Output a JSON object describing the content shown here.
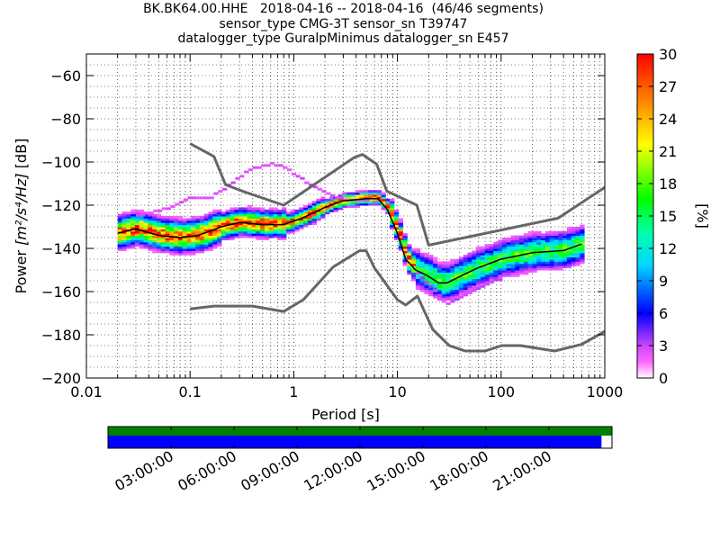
{
  "title_lines": [
    "BK.BK64.00.HHE   2018-04-16 -- 2018-04-16  (46/46 segments)",
    "sensor_type CMG-3T sensor_sn T39747",
    "datalogger_type GuralpMinimus datalogger_sn E457"
  ],
  "chart_data": {
    "type": "heatmap",
    "xlabel": "Period [s]",
    "ylabel_prefix": "Power ",
    "ylabel_units": "[m²/s⁴/Hz]",
    "ylabel_suffix": " [dB]",
    "x_scale": "log",
    "xlim": [
      0.01,
      1000
    ],
    "ylim": [
      -200,
      -50
    ],
    "x_ticks": [
      0.01,
      0.1,
      1,
      10,
      100,
      1000
    ],
    "x_tick_labels": [
      "0.01",
      "0.1",
      "1",
      "10",
      "100",
      "1000"
    ],
    "y_ticks": [
      -200,
      -180,
      -160,
      -140,
      -120,
      -100,
      -80,
      -60
    ],
    "y_tick_labels": [
      "−200",
      "−180",
      "−160",
      "−140",
      "−120",
      "−100",
      "−80",
      "−60"
    ],
    "grid": true,
    "colorbar": {
      "label": "[%]",
      "range": [
        0,
        30
      ],
      "ticks": [
        0,
        3,
        6,
        9,
        12,
        15,
        18,
        21,
        24,
        27,
        30
      ],
      "tick_labels": [
        "0",
        "3",
        "6",
        "9",
        "12",
        "15",
        "18",
        "21",
        "24",
        "27",
        "30"
      ]
    },
    "noise_model_high": {
      "x": [
        0.1,
        0.17,
        0.22,
        0.32,
        0.8,
        3.8,
        4.6,
        6.3,
        7.9,
        15.4,
        20,
        354.8,
        10000
      ],
      "y": [
        -91.5,
        -97.4,
        -110.5,
        -113.5,
        -120,
        -98,
        -96.5,
        -101,
        -113.5,
        -120,
        -138.5,
        -126,
        -80
      ]
    },
    "noise_model_low": {
      "x": [
        0.1,
        0.17,
        0.4,
        0.8,
        1.24,
        2.4,
        4.3,
        5,
        6,
        10,
        12,
        15.6,
        21.9,
        31.6,
        45,
        70,
        101,
        154,
        328,
        600,
        10000
      ],
      "y": [
        -168,
        -166.7,
        -166.7,
        -169.2,
        -163.7,
        -148.6,
        -141.1,
        -141.1,
        -149,
        -163.8,
        -166.2,
        -162.1,
        -177.5,
        -185,
        -187.5,
        -187.5,
        -185,
        -185,
        -187.5,
        -184.4,
        -151.5
      ]
    },
    "mode_curve": {
      "x": [
        0.02,
        0.03,
        0.05,
        0.08,
        0.12,
        0.2,
        0.3,
        0.5,
        0.8,
        1.2,
        2,
        3,
        5,
        6.5,
        8,
        10,
        12,
        15,
        20,
        25,
        30,
        40,
        60,
        100,
        200,
        400,
        600
      ],
      "y": [
        -133,
        -131,
        -134,
        -135,
        -134,
        -130,
        -128,
        -129,
        -129,
        -126,
        -121,
        -118,
        -117,
        -117,
        -122,
        -133,
        -145,
        -150,
        -153,
        -156,
        -156,
        -153,
        -149,
        -145,
        -142,
        -141,
        -138
      ]
    },
    "upper_outlier_curve": {
      "x": [
        0.03,
        0.05,
        0.08,
        0.1,
        0.15,
        0.25,
        0.35,
        0.6,
        0.8,
        1.2,
        2,
        3,
        5
      ],
      "y": [
        -125,
        -123,
        -119,
        -117,
        -117,
        -110,
        -104,
        -101,
        -103,
        -109,
        -115,
        -118,
        -118
      ]
    },
    "lower_outlier_curve": {
      "x": [
        15,
        20,
        25,
        30,
        40,
        60,
        100
      ],
      "y": [
        -152,
        -158,
        -163,
        -166,
        -163,
        -158,
        -154
      ]
    }
  },
  "timeline": {
    "tick_labels": [
      "03:00:00",
      "06:00:00",
      "09:00:00",
      "12:00:00",
      "15:00:00",
      "18:00:00",
      "21:00:00"
    ],
    "tick_hours": [
      3,
      6,
      9,
      12,
      15,
      18,
      21
    ],
    "range_hours": [
      0,
      24
    ],
    "data_coverage_end_hours": 23.5,
    "colors": {
      "top": "#008000",
      "bottom": "#0000ff"
    }
  }
}
